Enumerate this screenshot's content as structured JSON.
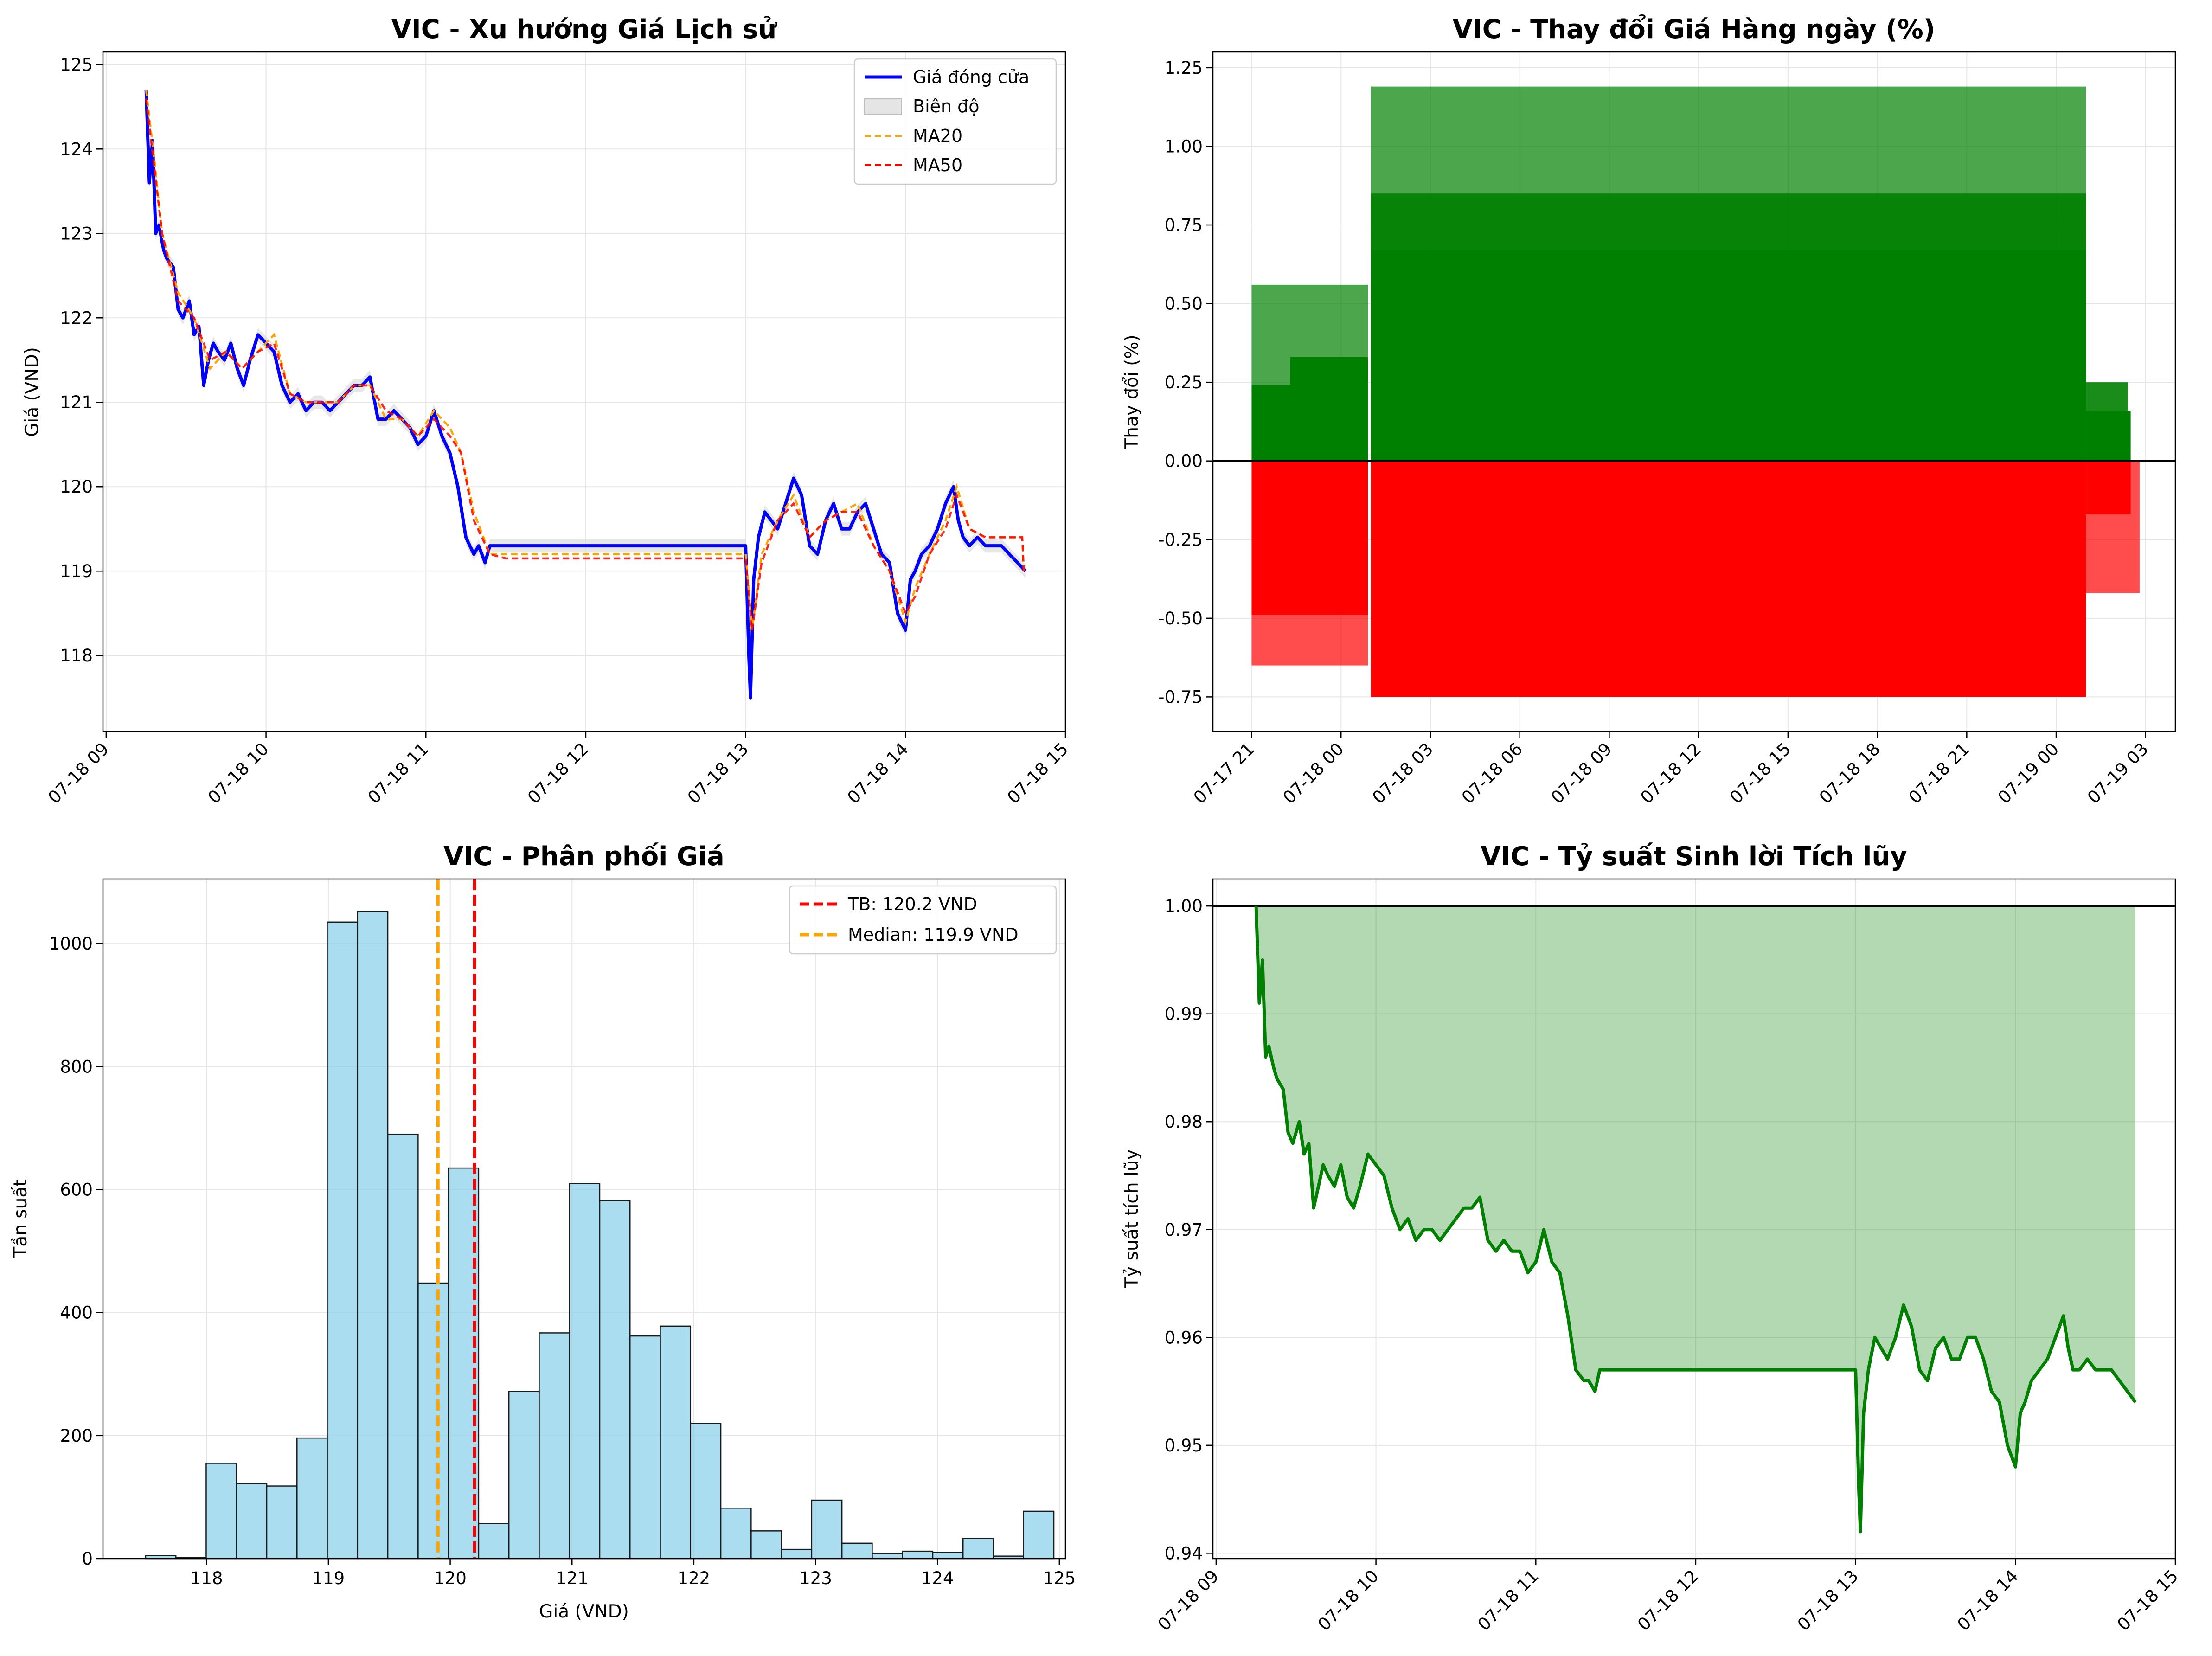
{
  "colors": {
    "close": "#0000ff",
    "ma20": "#ffa500",
    "ma50": "#ff0000",
    "range_fill": "#d3d3d3",
    "up": "#008000",
    "down": "#ff0000",
    "hist_fill": "#87ceeb",
    "hist_edge": "#1a1a1a",
    "cum_line": "#008000",
    "cum_fill": "#008000",
    "grid": "#e5e5e5"
  },
  "chart_data": [
    {
      "type": "line",
      "title": "VIC - Xu hướng Giá Lịch sử",
      "xlabel": "",
      "ylabel": "Giá (VND)",
      "x_ticks": [
        "07-18 09",
        "07-18 10",
        "07-18 11",
        "07-18 12",
        "07-18 13",
        "07-18 14",
        "07-18 15"
      ],
      "x_tick_hours": [
        9,
        10,
        11,
        12,
        13,
        14,
        15
      ],
      "xlim_hours": [
        8.98,
        15.0
      ],
      "y_ticks": [
        118,
        119,
        120,
        121,
        122,
        123,
        124,
        125
      ],
      "ylim": [
        117.1,
        125.15
      ],
      "grid": true,
      "legend_position": "top-right",
      "legend": [
        "Giá đóng cửa",
        "Biên độ",
        "MA20",
        "MA50"
      ],
      "series": [
        {
          "name": "Giá đóng cửa",
          "x_hours": [
            9.25,
            9.27,
            9.29,
            9.31,
            9.33,
            9.36,
            9.38,
            9.42,
            9.45,
            9.48,
            9.52,
            9.55,
            9.58,
            9.61,
            9.64,
            9.67,
            9.7,
            9.74,
            9.78,
            9.82,
            9.86,
            9.9,
            9.95,
            10.0,
            10.05,
            10.1,
            10.15,
            10.2,
            10.25,
            10.3,
            10.35,
            10.4,
            10.45,
            10.5,
            10.55,
            10.6,
            10.65,
            10.7,
            10.75,
            10.8,
            10.85,
            10.9,
            10.95,
            11.0,
            11.05,
            11.1,
            11.15,
            11.2,
            11.25,
            11.3,
            11.33,
            11.37,
            11.4,
            11.45,
            11.5,
            12.0,
            12.5,
            13.0,
            13.02,
            13.03,
            13.05,
            13.08,
            13.12,
            13.16,
            13.2,
            13.25,
            13.3,
            13.35,
            13.4,
            13.45,
            13.5,
            13.55,
            13.6,
            13.65,
            13.7,
            13.75,
            13.8,
            13.85,
            13.9,
            13.95,
            14.0,
            14.03,
            14.06,
            14.1,
            14.15,
            14.2,
            14.25,
            14.3,
            14.33,
            14.36,
            14.4,
            14.45,
            14.5,
            14.55,
            14.6,
            14.65,
            14.7,
            14.75
          ],
          "y": [
            124.7,
            123.6,
            124.1,
            123.0,
            123.1,
            122.8,
            122.7,
            122.6,
            122.1,
            122.0,
            122.2,
            121.8,
            121.9,
            121.2,
            121.5,
            121.7,
            121.6,
            121.5,
            121.7,
            121.4,
            121.2,
            121.5,
            121.8,
            121.7,
            121.6,
            121.2,
            121.0,
            121.1,
            120.9,
            121.0,
            121.0,
            120.9,
            121.0,
            121.1,
            121.2,
            121.2,
            121.3,
            120.8,
            120.8,
            120.9,
            120.8,
            120.7,
            120.5,
            120.6,
            120.9,
            120.6,
            120.4,
            120.0,
            119.4,
            119.2,
            119.3,
            119.1,
            119.3,
            119.3,
            119.3,
            119.3,
            119.3,
            119.3,
            118.0,
            117.5,
            118.9,
            119.4,
            119.7,
            119.6,
            119.5,
            119.8,
            120.1,
            119.9,
            119.3,
            119.2,
            119.6,
            119.8,
            119.5,
            119.5,
            119.7,
            119.8,
            119.5,
            119.2,
            119.1,
            118.5,
            118.3,
            118.9,
            119.0,
            119.2,
            119.3,
            119.5,
            119.8,
            120.0,
            119.6,
            119.4,
            119.3,
            119.4,
            119.3,
            119.3,
            119.3,
            119.2,
            119.1,
            119.0
          ]
        },
        {
          "name": "MA20",
          "x_hours": [
            9.25,
            9.3,
            9.35,
            9.45,
            9.55,
            9.65,
            9.75,
            9.85,
            9.95,
            10.05,
            10.15,
            10.25,
            10.35,
            10.45,
            10.55,
            10.65,
            10.75,
            10.85,
            10.95,
            11.05,
            11.15,
            11.22,
            11.3,
            11.4,
            11.5,
            13.0,
            13.04,
            13.1,
            13.2,
            13.3,
            13.4,
            13.5,
            13.6,
            13.7,
            13.8,
            13.9,
            14.0,
            14.06,
            14.15,
            14.25,
            14.32,
            14.4,
            14.5,
            14.6,
            14.73,
            14.74
          ],
          "y": [
            124.7,
            123.9,
            123.0,
            122.3,
            122.0,
            121.4,
            121.6,
            121.4,
            121.6,
            121.8,
            121.1,
            121.0,
            121.0,
            121.0,
            121.2,
            121.2,
            120.8,
            120.8,
            120.6,
            120.9,
            120.7,
            120.4,
            119.7,
            119.2,
            119.2,
            119.2,
            118.3,
            119.2,
            119.6,
            119.9,
            119.4,
            119.6,
            119.7,
            119.8,
            119.3,
            119.0,
            118.4,
            118.8,
            119.2,
            119.6,
            120.0,
            119.5,
            119.4,
            119.4,
            119.4,
            119.0
          ]
        },
        {
          "name": "MA50",
          "x_hours": [
            9.25,
            9.3,
            9.35,
            9.45,
            9.55,
            9.65,
            9.75,
            9.85,
            9.95,
            10.05,
            10.15,
            10.25,
            10.35,
            10.45,
            10.55,
            10.65,
            10.75,
            10.85,
            10.95,
            11.05,
            11.15,
            11.22,
            11.3,
            11.4,
            11.5,
            13.0,
            13.04,
            13.1,
            13.2,
            13.3,
            13.4,
            13.5,
            13.6,
            13.7,
            13.8,
            13.9,
            14.0,
            14.06,
            14.15,
            14.25,
            14.32,
            14.4,
            14.5,
            14.6,
            14.73,
            14.74
          ],
          "y": [
            124.6,
            123.8,
            123.0,
            122.2,
            122.0,
            121.5,
            121.6,
            121.4,
            121.6,
            121.7,
            121.1,
            121.0,
            121.0,
            121.0,
            121.2,
            121.2,
            120.9,
            120.8,
            120.6,
            120.8,
            120.6,
            120.4,
            119.6,
            119.2,
            119.15,
            119.15,
            118.3,
            119.1,
            119.6,
            119.8,
            119.4,
            119.6,
            119.7,
            119.7,
            119.3,
            119.0,
            118.5,
            118.7,
            119.2,
            119.5,
            119.9,
            119.5,
            119.4,
            119.4,
            119.4,
            119.0
          ]
        }
      ]
    },
    {
      "type": "bar",
      "title": "VIC - Thay đổi Giá Hàng ngày (%)",
      "xlabel": "",
      "ylabel": "Thay đổi (%)",
      "x_ticks": [
        "07-17 21",
        "07-18 00",
        "07-18 03",
        "07-18 06",
        "07-18 09",
        "07-18 12",
        "07-18 15",
        "07-18 18",
        "07-18 21",
        "07-19 00",
        "07-19 03"
      ],
      "x_tick_hours": [
        -3,
        0,
        3,
        6,
        9,
        12,
        15,
        18,
        21,
        24,
        27
      ],
      "xlim_hours": [
        -4.3,
        28.0
      ],
      "y_ticks": [
        -0.75,
        -0.5,
        -0.25,
        0.0,
        0.25,
        0.5,
        0.75,
        1.0,
        1.25
      ],
      "ylim": [
        -0.86,
        1.3
      ],
      "grid": true,
      "zero_line": true,
      "bars": [
        {
          "x0": -3.0,
          "x1": 0.9,
          "value": 0.56,
          "alpha": 0.7
        },
        {
          "x0": -3.0,
          "x1": 0.9,
          "value": -0.65,
          "alpha": 0.7
        },
        {
          "x0": -3.0,
          "x1": 0.9,
          "value": 0.24,
          "alpha": 1.0
        },
        {
          "x0": -1.7,
          "x1": 0.9,
          "value": 0.33,
          "alpha": 1.0
        },
        {
          "x0": -3.0,
          "x1": 0.9,
          "value": -0.49,
          "alpha": 1.0
        },
        {
          "x0": 1.0,
          "x1": 25.0,
          "value": 1.19,
          "alpha": 0.7
        },
        {
          "x0": 1.0,
          "x1": 25.0,
          "value": 0.85,
          "alpha": 0.9
        },
        {
          "x0": 1.0,
          "x1": 25.0,
          "value": 0.67,
          "alpha": 1.0
        },
        {
          "x0": 1.0,
          "x1": 25.0,
          "value": -0.75,
          "alpha": 1.0
        },
        {
          "x0": 25.0,
          "x1": 26.4,
          "value": 0.25,
          "alpha": 0.9
        },
        {
          "x0": 25.0,
          "x1": 26.5,
          "value": 0.16,
          "alpha": 1.0
        },
        {
          "x0": 25.0,
          "x1": 26.8,
          "value": -0.42,
          "alpha": 0.7
        },
        {
          "x0": 25.0,
          "x1": 26.5,
          "value": -0.17,
          "alpha": 1.0
        }
      ]
    },
    {
      "type": "bar",
      "title": "VIC - Phân phối Giá",
      "xlabel": "Giá (VND)",
      "ylabel": "Tần suất",
      "x_ticks": [
        118,
        119,
        120,
        121,
        122,
        123,
        124,
        125
      ],
      "xlim": [
        117.15,
        125.05
      ],
      "y_ticks": [
        0,
        200,
        400,
        600,
        800,
        1000
      ],
      "ylim": [
        0,
        1105
      ],
      "grid": true,
      "legend_position": "top-right",
      "legend": [
        "TB: 120.2 VND",
        "Median: 119.9 VND"
      ],
      "bin_start": 117.5,
      "bin_width": 0.2485,
      "counts": [
        5,
        2,
        155,
        122,
        118,
        196,
        1035,
        1052,
        690,
        448,
        635,
        57,
        272,
        367,
        610,
        582,
        362,
        378,
        220,
        82,
        45,
        15,
        95,
        25,
        8,
        12,
        10,
        33,
        4,
        77
      ],
      "mean": 120.2,
      "median": 119.9
    },
    {
      "type": "area",
      "title": "VIC - Tỷ suất Sinh lời Tích lũy",
      "xlabel": "",
      "ylabel": "Tỷ suất tích lũy",
      "x_ticks": [
        "07-18 09",
        "07-18 10",
        "07-18 11",
        "07-18 12",
        "07-18 13",
        "07-18 14",
        "07-18 15"
      ],
      "x_tick_hours": [
        9,
        10,
        11,
        12,
        13,
        14,
        15
      ],
      "xlim_hours": [
        8.98,
        15.0
      ],
      "y_ticks": [
        0.94,
        0.95,
        0.96,
        0.97,
        0.98,
        0.99,
        1.0
      ],
      "ylim": [
        0.9395,
        1.0025
      ],
      "grid": true,
      "baseline": 1.0,
      "x_hours": [
        9.25,
        9.27,
        9.29,
        9.31,
        9.33,
        9.36,
        9.38,
        9.42,
        9.45,
        9.48,
        9.52,
        9.55,
        9.58,
        9.61,
        9.64,
        9.67,
        9.7,
        9.74,
        9.78,
        9.82,
        9.86,
        9.9,
        9.95,
        10.0,
        10.05,
        10.1,
        10.15,
        10.2,
        10.25,
        10.3,
        10.35,
        10.4,
        10.45,
        10.5,
        10.55,
        10.6,
        10.65,
        10.7,
        10.75,
        10.8,
        10.85,
        10.9,
        10.95,
        11.0,
        11.05,
        11.1,
        11.15,
        11.2,
        11.25,
        11.3,
        11.33,
        11.37,
        11.4,
        11.45,
        11.5,
        12.0,
        12.5,
        13.0,
        13.02,
        13.03,
        13.05,
        13.08,
        13.12,
        13.16,
        13.2,
        13.25,
        13.3,
        13.35,
        13.4,
        13.45,
        13.5,
        13.55,
        13.6,
        13.65,
        13.7,
        13.75,
        13.8,
        13.85,
        13.9,
        13.95,
        14.0,
        14.03,
        14.06,
        14.1,
        14.15,
        14.2,
        14.25,
        14.3,
        14.33,
        14.36,
        14.4,
        14.45,
        14.5,
        14.55,
        14.6,
        14.65,
        14.7,
        14.75
      ],
      "y": [
        1.0,
        0.991,
        0.995,
        0.986,
        0.987,
        0.985,
        0.984,
        0.983,
        0.979,
        0.978,
        0.98,
        0.977,
        0.978,
        0.972,
        0.974,
        0.976,
        0.975,
        0.974,
        0.976,
        0.973,
        0.972,
        0.974,
        0.977,
        0.976,
        0.975,
        0.972,
        0.97,
        0.971,
        0.969,
        0.97,
        0.97,
        0.969,
        0.97,
        0.971,
        0.972,
        0.972,
        0.973,
        0.969,
        0.968,
        0.969,
        0.968,
        0.968,
        0.966,
        0.967,
        0.97,
        0.967,
        0.966,
        0.962,
        0.957,
        0.956,
        0.956,
        0.955,
        0.957,
        0.957,
        0.957,
        0.957,
        0.957,
        0.957,
        0.946,
        0.942,
        0.953,
        0.957,
        0.96,
        0.959,
        0.958,
        0.96,
        0.963,
        0.961,
        0.957,
        0.956,
        0.959,
        0.96,
        0.958,
        0.958,
        0.96,
        0.96,
        0.958,
        0.955,
        0.954,
        0.95,
        0.948,
        0.953,
        0.954,
        0.956,
        0.957,
        0.958,
        0.96,
        0.962,
        0.959,
        0.957,
        0.957,
        0.958,
        0.957,
        0.957,
        0.957,
        0.956,
        0.955,
        0.954
      ]
    }
  ]
}
